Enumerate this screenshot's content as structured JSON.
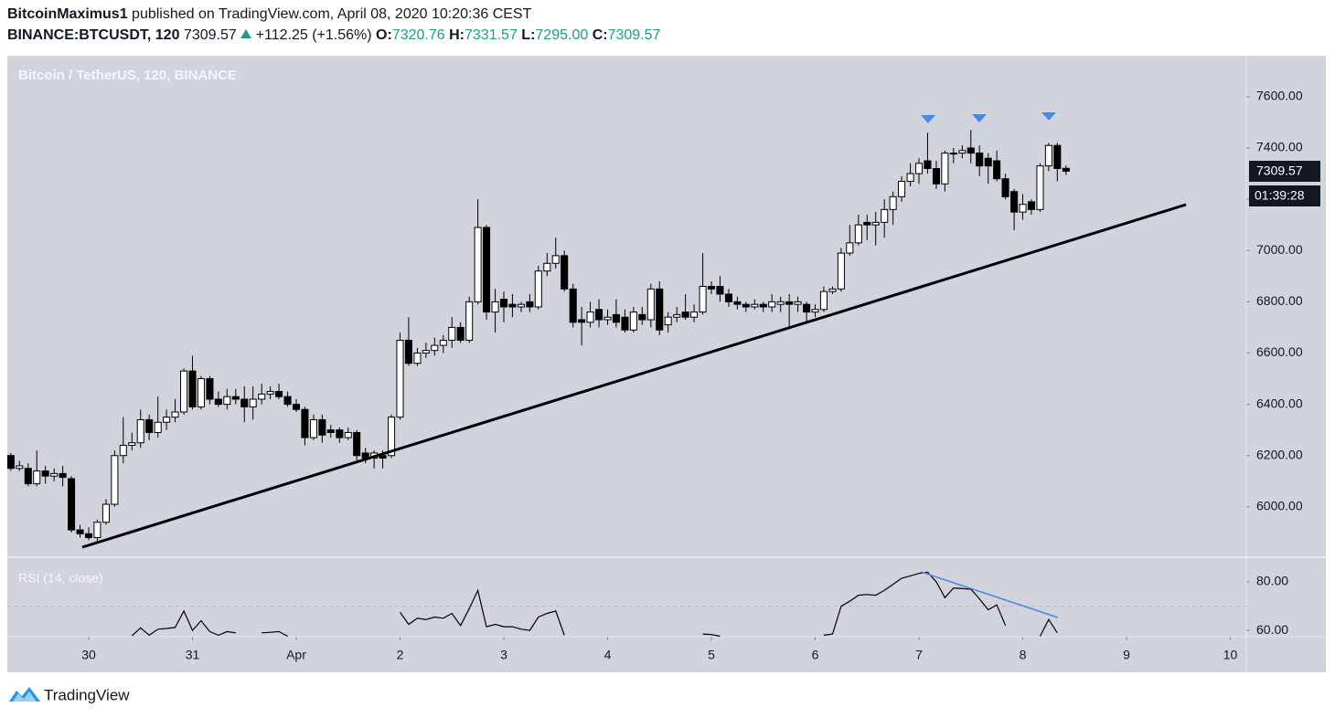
{
  "header": {
    "author": "BitcoinMaximus1",
    "published": "published on TradingView.com, April 08, 2020 10:20:36 CEST",
    "symbol": "BINANCE:BTCUSDT, 120",
    "last": "7309.57",
    "change": "+112.25 (+1.56%)",
    "ohlc": [
      {
        "key": "O:",
        "text": "7320.76"
      },
      {
        "key": "H:",
        "text": "7331.57"
      },
      {
        "key": "L:",
        "text": "7295.00"
      },
      {
        "key": "C:",
        "text": "7309.57"
      }
    ]
  },
  "footer": {
    "brand": "TradingView"
  },
  "chart_data": {
    "type": "candlestick",
    "title": "Bitcoin / TetherUS, 120, BINANCE",
    "countdown": "01:39:28",
    "up_color": "#ffffff",
    "down_color": "#000000",
    "wick_color": "#000000",
    "grid": false,
    "xlim": [
      29.216,
      41.154
    ],
    "xticks": [
      30,
      31,
      {
        "value": 32,
        "label": "Apr"
      },
      {
        "value": 33,
        "label": "2"
      },
      {
        "value": 34,
        "label": "3"
      },
      {
        "value": 35,
        "label": "4"
      },
      {
        "value": 36,
        "label": "5"
      },
      {
        "value": 37,
        "label": "6"
      },
      {
        "value": 38,
        "label": "7"
      },
      {
        "value": 39,
        "label": "8"
      },
      {
        "value": 40,
        "label": "9"
      },
      {
        "value": 41,
        "label": "10"
      }
    ],
    "ylim": [
      5807,
      7760
    ],
    "yticks": [
      {
        "value": 6000,
        "label": "6000.00"
      },
      {
        "value": 6200,
        "label": "6200.00"
      },
      {
        "value": 6400,
        "label": "6400.00"
      },
      {
        "value": 6600,
        "label": "6600.00"
      },
      {
        "value": 6800,
        "label": "6800.00"
      },
      {
        "value": 7000,
        "label": "7000.00"
      },
      {
        "value": 7200,
        "label": "7200.00"
      },
      {
        "value": 7400,
        "label": "7400.00"
      },
      {
        "value": 7600,
        "label": "7600.00"
      }
    ],
    "x": [
      29.25,
      29.333,
      29.417,
      29.5,
      29.583,
      29.667,
      29.75,
      29.833,
      29.917,
      30,
      30.083,
      30.167,
      30.25,
      30.333,
      30.417,
      30.5,
      30.583,
      30.667,
      30.75,
      30.833,
      30.917,
      31,
      31.083,
      31.167,
      31.25,
      31.333,
      31.417,
      31.5,
      31.583,
      31.667,
      31.75,
      31.833,
      31.917,
      32,
      32.083,
      32.167,
      32.25,
      32.333,
      32.417,
      32.5,
      32.583,
      32.667,
      32.75,
      32.833,
      32.917,
      33,
      33.083,
      33.167,
      33.25,
      33.333,
      33.417,
      33.5,
      33.583,
      33.667,
      33.75,
      33.833,
      33.917,
      34,
      34.083,
      34.167,
      34.25,
      34.333,
      34.417,
      34.5,
      34.583,
      34.667,
      34.75,
      34.833,
      34.917,
      35,
      35.083,
      35.167,
      35.25,
      35.333,
      35.417,
      35.5,
      35.583,
      35.667,
      35.75,
      35.833,
      35.917,
      36,
      36.083,
      36.167,
      36.25,
      36.333,
      36.417,
      36.5,
      36.583,
      36.667,
      36.75,
      36.833,
      36.917,
      37,
      37.083,
      37.167,
      37.25,
      37.333,
      37.417,
      37.5,
      37.583,
      37.667,
      37.75,
      37.833,
      37.917,
      38,
      38.083,
      38.167,
      38.25,
      38.333,
      38.417,
      38.5,
      38.583,
      38.667,
      38.75,
      38.833,
      38.917,
      39,
      39.083,
      39.167,
      39.25,
      39.333,
      39.417
    ],
    "open": [
      6200,
      6150,
      6150,
      6090,
      6140,
      6120,
      6130,
      6110,
      5910,
      5895,
      5880,
      5940,
      6010,
      6200,
      6240,
      6250,
      6340,
      6290,
      6330,
      6350,
      6370,
      6530,
      6390,
      6500,
      6420,
      6400,
      6430,
      6420,
      6390,
      6420,
      6440,
      6450,
      6430,
      6400,
      6380,
      6270,
      6340,
      6300,
      6300,
      6270,
      6290,
      6210,
      6190,
      6200,
      6200,
      6350,
      6650,
      6560,
      6600,
      6610,
      6630,
      6650,
      6700,
      6650,
      6800,
      7090,
      6760,
      6810,
      6790,
      6780,
      6800,
      6780,
      6920,
      6950,
      6980,
      6850,
      6730,
      6720,
      6770,
      6730,
      6750,
      6740,
      6690,
      6750,
      6730,
      6850,
      6710,
      6740,
      6760,
      6740,
      6760,
      6860,
      6860,
      6830,
      6800,
      6790,
      6780,
      6790,
      6780,
      6790,
      6800,
      6790,
      6790,
      6760,
      6770,
      6840,
      6850,
      6990,
      7030,
      7110,
      7100,
      7110,
      7160,
      7210,
      7270,
      7300,
      7350,
      7320,
      7260,
      7380,
      7380,
      7400,
      7380,
      7360,
      7350,
      7280,
      7230,
      7150,
      7190,
      7160,
      7330,
      7410,
      7320.76
    ],
    "high": [
      6210,
      6180,
      6170,
      6220,
      6160,
      6150,
      6160,
      6120,
      5930,
      5920,
      5950,
      6030,
      6220,
      6350,
      6290,
      6380,
      6360,
      6430,
      6380,
      6420,
      6540,
      6590,
      6510,
      6510,
      6450,
      6460,
      6460,
      6470,
      6470,
      6480,
      6470,
      6480,
      6450,
      6420,
      6390,
      6360,
      6360,
      6320,
      6310,
      6310,
      6300,
      6230,
      6220,
      6220,
      6360,
      6680,
      6740,
      6620,
      6640,
      6660,
      6670,
      6740,
      6720,
      6820,
      7200,
      7100,
      6850,
      6840,
      6830,
      6800,
      6830,
      6940,
      6990,
      7050,
      7000,
      6870,
      6780,
      6800,
      6810,
      6770,
      6810,
      6770,
      6780,
      6780,
      6870,
      6880,
      6760,
      6780,
      6830,
      6790,
      6990,
      6880,
      6900,
      6850,
      6820,
      6800,
      6810,
      6800,
      6830,
      6820,
      6830,
      6820,
      6800,
      6790,
      6860,
      6860,
      7010,
      7100,
      7140,
      7140,
      7150,
      7200,
      7230,
      7290,
      7340,
      7360,
      7460,
      7350,
      7390,
      7400,
      7410,
      7470,
      7410,
      7380,
      7390,
      7300,
      7240,
      7220,
      7200,
      7340,
      7420,
      7420,
      7331.57
    ],
    "low": [
      6140,
      6140,
      6080,
      6080,
      6090,
      6100,
      6080,
      5900,
      5880,
      5870,
      5860,
      5930,
      6000,
      6170,
      6220,
      6230,
      6260,
      6270,
      6300,
      6330,
      6360,
      6380,
      6380,
      6400,
      6390,
      6380,
      6400,
      6330,
      6340,
      6400,
      6420,
      6420,
      6390,
      6370,
      6240,
      6260,
      6250,
      6270,
      6250,
      6260,
      6180,
      6170,
      6150,
      6150,
      6190,
      6340,
      6550,
      6550,
      6580,
      6590,
      6600,
      6620,
      6640,
      6640,
      6790,
      6730,
      6680,
      6720,
      6740,
      6760,
      6760,
      6770,
      6900,
      6930,
      6840,
      6700,
      6630,
      6700,
      6700,
      6710,
      6700,
      6680,
      6680,
      6710,
      6700,
      6670,
      6680,
      6720,
      6730,
      6720,
      6750,
      6830,
      6800,
      6780,
      6770,
      6760,
      6770,
      6760,
      6760,
      6760,
      6700,
      6760,
      6720,
      6740,
      6760,
      6830,
      6840,
      6980,
      7020,
      7040,
      7020,
      7050,
      7100,
      7190,
      7250,
      7260,
      7300,
      7240,
      7230,
      7340,
      7360,
      7340,
      7290,
      7260,
      7270,
      7200,
      7080,
      7120,
      7140,
      7150,
      7310,
      7270,
      7295
    ],
    "close": [
      6150,
      6160,
      6090,
      6140,
      6120,
      6130,
      6115,
      5910,
      5895,
      5880,
      5940,
      6010,
      6200,
      6240,
      6250,
      6340,
      6290,
      6330,
      6350,
      6370,
      6530,
      6390,
      6500,
      6420,
      6400,
      6430,
      6420,
      6390,
      6420,
      6440,
      6450,
      6430,
      6400,
      6380,
      6270,
      6340,
      6280,
      6290,
      6270,
      6290,
      6200,
      6190,
      6210,
      6190,
      6350,
      6650,
      6560,
      6600,
      6610,
      6630,
      6650,
      6700,
      6650,
      6800,
      7090,
      6760,
      6800,
      6780,
      6780,
      6790,
      6780,
      6920,
      6950,
      6980,
      6850,
      6720,
      6720,
      6760,
      6730,
      6740,
      6720,
      6690,
      6760,
      6730,
      6850,
      6690,
      6740,
      6750,
      6740,
      6760,
      6860,
      6850,
      6830,
      6800,
      6790,
      6780,
      6790,
      6780,
      6800,
      6800,
      6790,
      6800,
      6760,
      6770,
      6840,
      6850,
      6990,
      7030,
      7100,
      7100,
      7110,
      7160,
      7210,
      7270,
      7300,
      7340,
      7320,
      7260,
      7380,
      7380,
      7390,
      7380,
      7330,
      7330,
      7280,
      7210,
      7150,
      7180,
      7160,
      7330,
      7410,
      7320,
      7309.57
    ],
    "rsi": {
      "title": "RSI (14, close)",
      "color": "#000000",
      "ylim": [
        57.4,
        89.8
      ],
      "ref_line": 70,
      "yticks": [
        {
          "value": 60,
          "label": "60.00"
        },
        {
          "value": 80,
          "label": "80.00"
        }
      ],
      "values": [
        null,
        null,
        null,
        null,
        null,
        null,
        null,
        null,
        null,
        null,
        null,
        null,
        null,
        null,
        57.8,
        61,
        58,
        60.5,
        60.8,
        61.2,
        68,
        60,
        64,
        59.5,
        58,
        59.5,
        59,
        null,
        null,
        59,
        59.2,
        59.5,
        57.6,
        null,
        null,
        null,
        null,
        null,
        null,
        null,
        null,
        null,
        null,
        null,
        null,
        67.5,
        62.5,
        65,
        64.5,
        65.5,
        65,
        67,
        62,
        69,
        76.5,
        61.5,
        62.5,
        61.5,
        61.5,
        60.5,
        60,
        65.5,
        67,
        68,
        58,
        null,
        null,
        null,
        null,
        null,
        null,
        null,
        null,
        null,
        null,
        null,
        null,
        null,
        null,
        null,
        58.5,
        58.3,
        57.6,
        null,
        null,
        null,
        null,
        null,
        null,
        null,
        null,
        null,
        null,
        null,
        58,
        58.5,
        70,
        72,
        74.5,
        74.8,
        74.5,
        76.5,
        79,
        81.5,
        82.5,
        83.5,
        84,
        80,
        73.5,
        77.5,
        77.2,
        77,
        73,
        68.5,
        70.5,
        62,
        null,
        null,
        null,
        57.6,
        64.5,
        59,
        null
      ]
    }
  }
}
